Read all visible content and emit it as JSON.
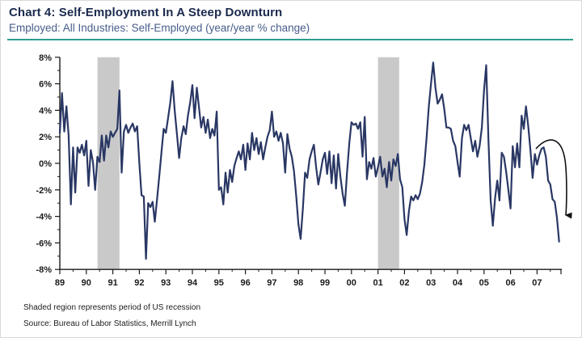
{
  "header": {
    "title": "Chart 4: Self-Employment In A Steep Downturn",
    "subtitle": "Employed: All Industries: Self-Employed (year/year % change)"
  },
  "footnotes": {
    "note": "Shaded region represents period of US recession",
    "source": "Source: Bureau of Labor Statistics, Merrill Lynch"
  },
  "colors": {
    "title": "#1b2a4e",
    "subtitle": "#475d8b",
    "teal_rule": "#2f9e8f",
    "line": "#293764",
    "recession_band": "#c9c9c9",
    "axis": "#1a1a1a",
    "arrow": "#111111"
  },
  "chart_data": {
    "type": "line",
    "title": "Employed: All Industries: Self-Employed (year/year % change)",
    "xlabel": "",
    "ylabel": "year/year % change",
    "ylim": [
      -8,
      8
    ],
    "grid": false,
    "legend": "none",
    "x_start_year": 1989,
    "points_per_year": 12,
    "y_ticks": [
      {
        "value": 8,
        "label": "8%"
      },
      {
        "value": 6,
        "label": "6%"
      },
      {
        "value": 4,
        "label": "4%"
      },
      {
        "value": 2,
        "label": "2%"
      },
      {
        "value": 0,
        "label": "0%"
      },
      {
        "value": -2,
        "label": "-2%"
      },
      {
        "value": -4,
        "label": "-4%"
      },
      {
        "value": -6,
        "label": "-6%"
      },
      {
        "value": -8,
        "label": "-8%"
      }
    ],
    "x_ticks": [
      {
        "year": 1989,
        "label": "89"
      },
      {
        "year": 1990,
        "label": "90"
      },
      {
        "year": 1991,
        "label": "91"
      },
      {
        "year": 1992,
        "label": "92"
      },
      {
        "year": 1993,
        "label": "93"
      },
      {
        "year": 1994,
        "label": "94"
      },
      {
        "year": 1995,
        "label": "95"
      },
      {
        "year": 1996,
        "label": "96"
      },
      {
        "year": 1997,
        "label": "97"
      },
      {
        "year": 1998,
        "label": "98"
      },
      {
        "year": 1999,
        "label": "99"
      },
      {
        "year": 2000,
        "label": "00"
      },
      {
        "year": 2001,
        "label": "01"
      },
      {
        "year": 2002,
        "label": "02"
      },
      {
        "year": 2003,
        "label": "03"
      },
      {
        "year": 2004,
        "label": "04"
      },
      {
        "year": 2005,
        "label": "05"
      },
      {
        "year": 2006,
        "label": "06"
      },
      {
        "year": 2007,
        "label": "07"
      }
    ],
    "recessions": [
      {
        "start": 1990.42,
        "end": 1991.25
      },
      {
        "start": 2001.0,
        "end": 2001.8
      }
    ],
    "annotation_arrow": {
      "shape": "curved-arrow",
      "points_to": "steep late-2007 plunge"
    },
    "series": [
      {
        "name": "Self-Employed (year/year % change)",
        "values": [
          2.3,
          5.3,
          2.4,
          4.3,
          2.1,
          -3.1,
          1.2,
          -2.2,
          1.2,
          0.8,
          1.4,
          0.6,
          1.7,
          -1.7,
          1.0,
          0.1,
          -2.0,
          0.5,
          0.1,
          2.1,
          0.2,
          2.1,
          1.2,
          2.4,
          2.0,
          2.3,
          2.6,
          5.5,
          -0.7,
          2.4,
          2.9,
          2.3,
          2.7,
          3.0,
          2.4,
          2.8,
          0.0,
          -2.4,
          -2.5,
          -7.2,
          -3.0,
          -3.3,
          -2.9,
          -4.4,
          -2.7,
          -1.0,
          0.8,
          2.6,
          2.3,
          3.4,
          4.6,
          6.2,
          4.0,
          2.2,
          0.4,
          1.9,
          2.8,
          2.2,
          3.6,
          4.6,
          5.9,
          3.4,
          5.7,
          4.2,
          2.7,
          3.5,
          2.3,
          3.3,
          1.9,
          2.6,
          2.1,
          3.9,
          -2.0,
          -1.8,
          -3.1,
          -0.7,
          -2.2,
          -0.5,
          -1.4,
          -0.2,
          0.4,
          0.9,
          0.3,
          1.4,
          -0.5,
          1.5,
          0.3,
          2.3,
          1.0,
          1.9,
          0.7,
          1.6,
          0.3,
          1.2,
          2.0,
          2.5,
          3.9,
          2.0,
          2.4,
          1.7,
          2.3,
          1.5,
          -0.7,
          2.2,
          1.1,
          0.5,
          -0.6,
          -2.5,
          -4.6,
          -5.7,
          -3.4,
          -0.7,
          -1.1,
          0.3,
          0.9,
          1.4,
          -0.3,
          -1.6,
          -0.7,
          0.3,
          0.8,
          -0.8,
          0.9,
          -1.5,
          0.6,
          -1.9,
          0.7,
          -1.0,
          -2.3,
          -3.2,
          -0.7,
          1.5,
          3.1,
          2.9,
          3.0,
          2.6,
          3.1,
          0.5,
          3.5,
          -1.2,
          0.1,
          -0.4,
          0.4,
          -1.0,
          -0.3,
          0.5,
          -1.0,
          -0.4,
          -1.8,
          0.1,
          -1.3,
          0.3,
          -0.2,
          0.7,
          -1.2,
          -1.8,
          -4.2,
          -5.4,
          -3.6,
          -2.5,
          -2.8,
          -2.4,
          -2.7,
          -2.3,
          -1.4,
          -0.1,
          1.9,
          4.3,
          6.0,
          7.6,
          5.7,
          4.5,
          4.8,
          5.2,
          4.1,
          2.7,
          2.7,
          2.6,
          1.7,
          1.3,
          0.1,
          -1.0,
          1.9,
          2.9,
          2.5,
          2.9,
          1.9,
          0.9,
          1.7,
          0.5,
          1.3,
          2.7,
          5.5,
          7.4,
          1.7,
          -2.8,
          -4.7,
          -2.6,
          -1.3,
          -2.8,
          0.8,
          0.5,
          -0.6,
          -2.0,
          -3.4,
          1.3,
          -0.3,
          1.5,
          -0.3,
          3.6,
          2.6,
          4.3,
          2.8,
          1.0,
          -1.1,
          0.7,
          -0.1,
          0.6,
          1.1,
          1.2,
          0.5,
          -1.3,
          -1.6,
          -2.7,
          -2.9,
          -4.1,
          -5.9
        ]
      }
    ]
  }
}
